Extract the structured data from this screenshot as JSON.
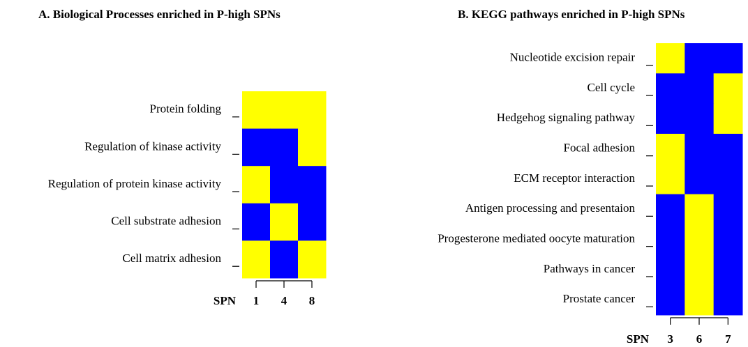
{
  "chart_data": [
    {
      "type": "heatmap",
      "title": "A. Biological Processes enriched in P-high SPNs",
      "x_label": "SPN",
      "categories": [
        "1",
        "4",
        "8"
      ],
      "rows": [
        "Protein folding",
        "Regulation of kinase activity",
        "Regulation of protein kinase activity",
        "Cell substrate adhesion",
        "Cell matrix adhesion"
      ],
      "values": [
        [
          1,
          1,
          1
        ],
        [
          0,
          0,
          1
        ],
        [
          1,
          0,
          0
        ],
        [
          0,
          1,
          0
        ],
        [
          1,
          0,
          1
        ]
      ],
      "colors": [
        "#0000ff",
        "#ffff00"
      ]
    },
    {
      "type": "heatmap",
      "title": "B. KEGG pathways enriched in P-high SPNs",
      "x_label": "SPN",
      "categories": [
        "3",
        "6",
        "7"
      ],
      "rows": [
        "Nucleotide excision repair",
        "Cell cycle",
        "Hedgehog signaling pathway",
        "Focal adhesion",
        "ECM receptor interaction",
        "Antigen processing and presentaion",
        "Progesterone mediated oocyte maturation",
        "Pathways in cancer",
        "Prostate cancer"
      ],
      "values": [
        [
          1,
          0,
          0
        ],
        [
          0,
          0,
          1
        ],
        [
          0,
          0,
          1
        ],
        [
          1,
          0,
          0
        ],
        [
          1,
          0,
          0
        ],
        [
          0,
          1,
          0
        ],
        [
          0,
          1,
          0
        ],
        [
          0,
          1,
          0
        ],
        [
          0,
          1,
          0
        ]
      ],
      "colors": [
        "#0000ff",
        "#ffff00"
      ]
    }
  ]
}
